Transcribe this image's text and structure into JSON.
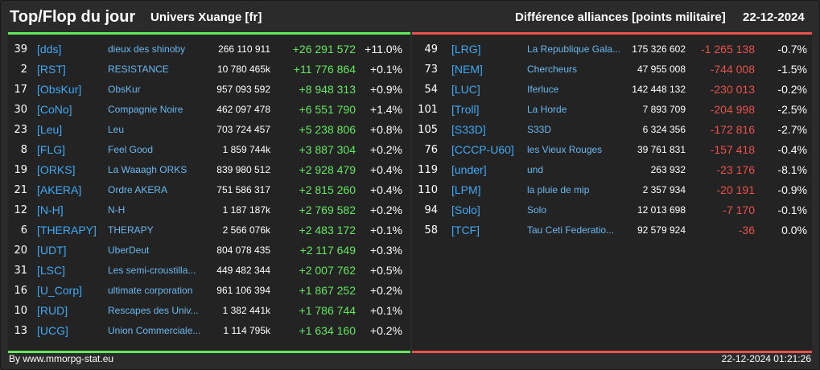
{
  "header": {
    "title": "Top/Flop du jour",
    "universe": "Univers Xuange [fr]",
    "difference_label": "Différence alliances [points militaire]",
    "date": "22-12-2024"
  },
  "colors": {
    "positive": "#63e85f",
    "negative": "#e8524d",
    "link": "#3fa9f5"
  },
  "top": [
    {
      "rank": "39",
      "tag": "[dds]",
      "name": "dieux des shinoby",
      "points": "266 110 911",
      "delta": "+26 291 572",
      "pct": "+11.0%"
    },
    {
      "rank": "2",
      "tag": "[RST]",
      "name": "RESISTANCE",
      "points": "10 780 465k",
      "delta": "+11 776 864",
      "pct": "+0.1%"
    },
    {
      "rank": "17",
      "tag": "[ObsKur]",
      "name": "ObsKur",
      "points": "957 093 592",
      "delta": "+8 948 313",
      "pct": "+0.9%"
    },
    {
      "rank": "30",
      "tag": "[CoNo]",
      "name": "Compagnie Noire",
      "points": "462 097 478",
      "delta": "+6 551 790",
      "pct": "+1.4%"
    },
    {
      "rank": "23",
      "tag": "[Leu]",
      "name": "Leu",
      "points": "703 724 457",
      "delta": "+5 238 806",
      "pct": "+0.8%"
    },
    {
      "rank": "8",
      "tag": "[FLG]",
      "name": "Feel Good",
      "points": "1 859 744k",
      "delta": "+3 887 304",
      "pct": "+0.2%"
    },
    {
      "rank": "19",
      "tag": "[ORKS]",
      "name": "La Waaagh ORKS",
      "points": "839 980 512",
      "delta": "+2 928 479",
      "pct": "+0.4%"
    },
    {
      "rank": "21",
      "tag": "[AKERA]",
      "name": "Ordre AKERA",
      "points": "751 586 317",
      "delta": "+2 815 260",
      "pct": "+0.4%"
    },
    {
      "rank": "12",
      "tag": "[N-H]",
      "name": "N-H",
      "points": "1 187 187k",
      "delta": "+2 769 582",
      "pct": "+0.2%"
    },
    {
      "rank": "6",
      "tag": "[THERAPY]",
      "name": "THERAPY",
      "points": "2 566 076k",
      "delta": "+2 483 172",
      "pct": "+0.1%"
    },
    {
      "rank": "20",
      "tag": "[UDT]",
      "name": "UberDeut",
      "points": "804 078 435",
      "delta": "+2 117 649",
      "pct": "+0.3%"
    },
    {
      "rank": "31",
      "tag": "[LSC]",
      "name": "Les semi-croustilla...",
      "points": "449 482 344",
      "delta": "+2 007 762",
      "pct": "+0.5%"
    },
    {
      "rank": "16",
      "tag": "[U_Corp]",
      "name": "ultimate corporation",
      "points": "961 106 394",
      "delta": "+1 867 252",
      "pct": "+0.2%"
    },
    {
      "rank": "10",
      "tag": "[RUD]",
      "name": "Rescapes des Univ...",
      "points": "1 382 441k",
      "delta": "+1 786 744",
      "pct": "+0.1%"
    },
    {
      "rank": "13",
      "tag": "[UCG]",
      "name": "Union Commerciale...",
      "points": "1 114 795k",
      "delta": "+1 634 160",
      "pct": "+0.2%"
    }
  ],
  "flop": [
    {
      "rank": "49",
      "tag": "[LRG]",
      "name": "La Republique Gala...",
      "points": "175 326 602",
      "delta": "-1 265 138",
      "pct": "-0.7%"
    },
    {
      "rank": "73",
      "tag": "[NEM]",
      "name": "Chercheurs",
      "points": "47 955 008",
      "delta": "-744 008",
      "pct": "-1.5%"
    },
    {
      "rank": "54",
      "tag": "[LUC]",
      "name": "Iferluce",
      "points": "142 448 132",
      "delta": "-230 013",
      "pct": "-0.2%"
    },
    {
      "rank": "101",
      "tag": "[Troll]",
      "name": "La Horde",
      "points": "7 893 709",
      "delta": "-204 998",
      "pct": "-2.5%"
    },
    {
      "rank": "105",
      "tag": "[S33D]",
      "name": "S33D",
      "points": "6 324 356",
      "delta": "-172 816",
      "pct": "-2.7%"
    },
    {
      "rank": "76",
      "tag": "[CCCP-U60]",
      "name": "les Vieux Rouges",
      "points": "39 761 831",
      "delta": "-157 418",
      "pct": "-0.4%"
    },
    {
      "rank": "119",
      "tag": "[under]",
      "name": "und",
      "points": "263 932",
      "delta": "-23 176",
      "pct": "-8.1%"
    },
    {
      "rank": "110",
      "tag": "[LPM]",
      "name": "la pluie de mip",
      "points": "2 357 934",
      "delta": "-20 191",
      "pct": "-0.9%"
    },
    {
      "rank": "94",
      "tag": "[Solo]",
      "name": "Solo",
      "points": "12 013 698",
      "delta": "-7 170",
      "pct": "-0.1%"
    },
    {
      "rank": "58",
      "tag": "[TCF]",
      "name": "Tau Ceti Federatio...",
      "points": "92 579 924",
      "delta": "-36",
      "pct": "0.0%"
    }
  ],
  "footer": {
    "source": "By www.mmorpg-stat.eu",
    "timestamp": "22-12-2024 01:21:26"
  }
}
